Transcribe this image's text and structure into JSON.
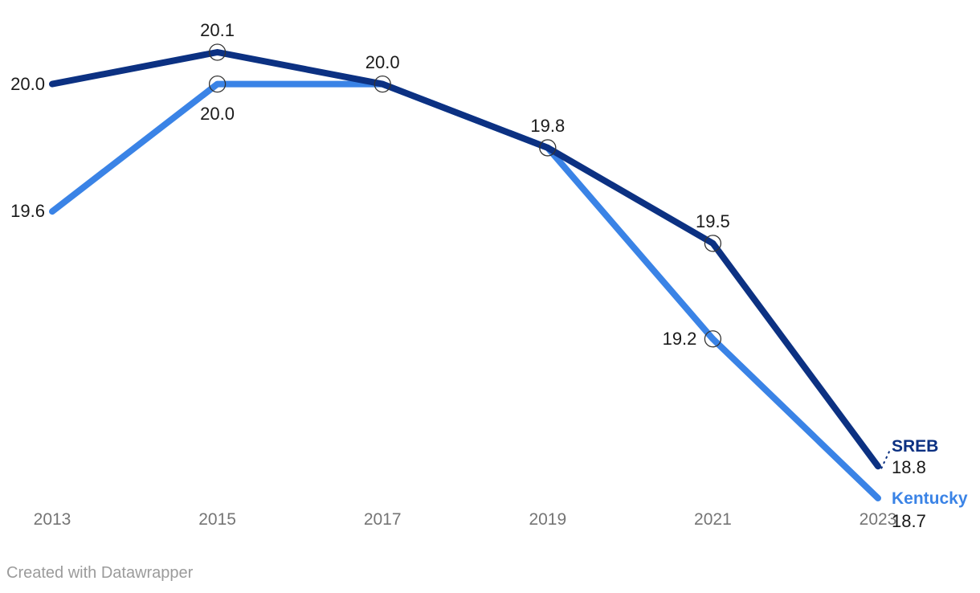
{
  "chart_data": {
    "type": "line",
    "x": [
      "2013",
      "2015",
      "2017",
      "2019",
      "2021",
      "2023"
    ],
    "series": [
      {
        "name": "SREB",
        "color": "#0c3182",
        "values": [
          20.0,
          20.1,
          20.0,
          19.8,
          19.5,
          18.8
        ],
        "point_labels": [
          "20.0",
          "20.1",
          "20.0",
          "19.8",
          "19.5",
          ""
        ],
        "label_positions": [
          "left",
          "above",
          "above",
          "above",
          "above",
          ""
        ],
        "markers": [
          false,
          true,
          true,
          true,
          true,
          false
        ],
        "end_label": {
          "name": "SREB",
          "value": "18.8",
          "connector": "dashed"
        }
      },
      {
        "name": "Kentucky",
        "color": "#3a83e6",
        "values": [
          19.6,
          20.0,
          20.0,
          19.8,
          19.2,
          18.7
        ],
        "point_labels": [
          "19.6",
          "20.0",
          "",
          "",
          "19.2",
          ""
        ],
        "label_positions": [
          "left",
          "below",
          "",
          "",
          "left",
          ""
        ],
        "markers": [
          false,
          true,
          false,
          false,
          true,
          false
        ],
        "end_label": {
          "name": "Kentucky",
          "value": "18.7",
          "connector": "none"
        }
      }
    ],
    "title": "",
    "xlabel": "",
    "ylabel": "",
    "ylim": [
      18.6,
      20.2
    ],
    "grid": false,
    "legend_position": "line-end"
  },
  "colors": {
    "sreb": "#0c3182",
    "kentucky": "#3a83e6",
    "value_label": "#1a1a1a",
    "axis_label": "#757575",
    "marker_stroke": "#333333",
    "credit": "#9b9b9b"
  },
  "footer": {
    "credit": "Created with Datawrapper"
  }
}
